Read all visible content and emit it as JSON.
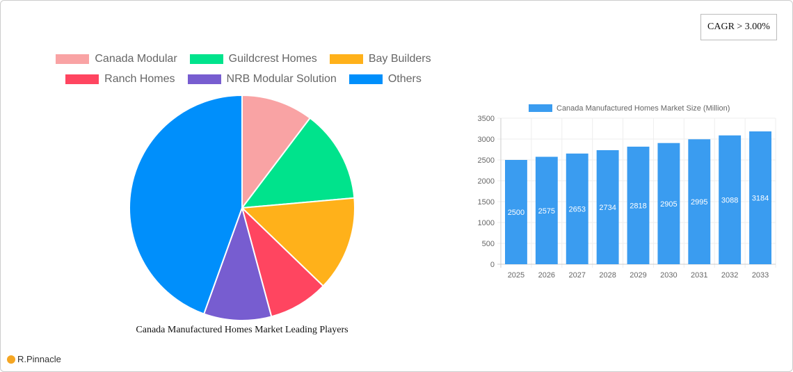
{
  "cagr_label": "CAGR > 3.00%",
  "brand": "R.Pinnacle",
  "chart_data": [
    {
      "type": "pie",
      "title": "Canada Manufactured Homes Market Leading Players",
      "legend_position": "top",
      "slices": [
        {
          "label": "Canada Modular",
          "value": 10.3,
          "color": "#f9a3a4"
        },
        {
          "label": "Guildcrest Homes",
          "value": 13.3,
          "color": "#00e38c"
        },
        {
          "label": "Bay Builders",
          "value": 13.6,
          "color": "#ffb11a"
        },
        {
          "label": "Ranch Homes",
          "value": 8.6,
          "color": "#ff4560"
        },
        {
          "label": "NRB Modular Solution",
          "value": 9.7,
          "color": "#775dd0"
        },
        {
          "label": "Others",
          "value": 44.5,
          "color": "#008ffb"
        }
      ]
    },
    {
      "type": "bar",
      "legend": "Canada Manufactured Homes Market Size (Million)",
      "legend_position": "top",
      "color": "#3a9cf0",
      "categories": [
        "2025",
        "2026",
        "2027",
        "2028",
        "2029",
        "2030",
        "2031",
        "2032",
        "2033"
      ],
      "values": [
        2500,
        2575,
        2653,
        2734,
        2818,
        2905,
        2995,
        3088,
        3184
      ],
      "ylim": [
        0,
        3500
      ],
      "yticks": [
        0,
        500,
        1000,
        1500,
        2000,
        2500,
        3000,
        3500
      ],
      "grid": true
    }
  ]
}
